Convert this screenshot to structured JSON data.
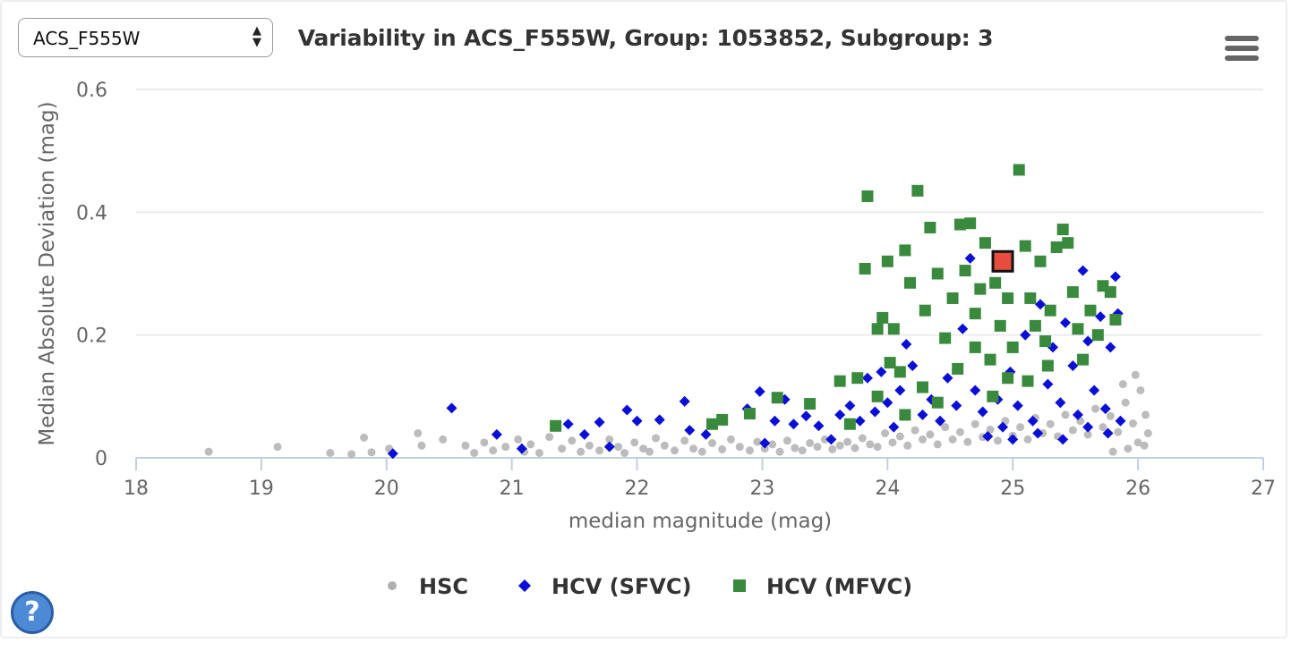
{
  "selector": {
    "value": "ACS_F555W"
  },
  "help_icon": {
    "glyph": "?"
  },
  "chart_data": {
    "type": "scatter",
    "title": "Variability in ACS_F555W, Group: 1053852, Subgroup: 3",
    "xlabel": "median magnitude (mag)",
    "ylabel": "Median Absolute Deviation (mag)",
    "xlim": [
      18,
      27
    ],
    "ylim": [
      0,
      0.6
    ],
    "xticks": [
      "18",
      "19",
      "20",
      "21",
      "22",
      "23",
      "24",
      "25",
      "26",
      "27"
    ],
    "yticks": [
      "0",
      "0.2",
      "0.4",
      "0.6"
    ],
    "grid": "horizontal",
    "legend": "bottom-center",
    "highlight": {
      "x": 24.92,
      "y": 0.32,
      "color": "#e74c3c"
    },
    "series": [
      {
        "name": "HSC",
        "marker": "circle",
        "color": "#b0b0b0",
        "points": [
          [
            18.58,
            0.01
          ],
          [
            19.13,
            0.018
          ],
          [
            19.55,
            0.008
          ],
          [
            19.72,
            0.006
          ],
          [
            19.82,
            0.033
          ],
          [
            19.88,
            0.009
          ],
          [
            20.02,
            0.015
          ],
          [
            20.28,
            0.02
          ],
          [
            20.25,
            0.04
          ],
          [
            20.45,
            0.03
          ],
          [
            20.63,
            0.02
          ],
          [
            20.7,
            0.008
          ],
          [
            20.78,
            0.025
          ],
          [
            20.85,
            0.012
          ],
          [
            20.95,
            0.018
          ],
          [
            21.05,
            0.03
          ],
          [
            21.1,
            0.01
          ],
          [
            21.15,
            0.022
          ],
          [
            21.22,
            0.008
          ],
          [
            21.3,
            0.034
          ],
          [
            21.4,
            0.015
          ],
          [
            21.48,
            0.028
          ],
          [
            21.55,
            0.01
          ],
          [
            21.62,
            0.02
          ],
          [
            21.7,
            0.012
          ],
          [
            21.78,
            0.03
          ],
          [
            21.85,
            0.018
          ],
          [
            21.9,
            0.008
          ],
          [
            21.98,
            0.025
          ],
          [
            22.05,
            0.015
          ],
          [
            22.1,
            0.01
          ],
          [
            22.15,
            0.032
          ],
          [
            22.22,
            0.02
          ],
          [
            22.3,
            0.012
          ],
          [
            22.38,
            0.028
          ],
          [
            22.45,
            0.015
          ],
          [
            22.52,
            0.01
          ],
          [
            22.6,
            0.024
          ],
          [
            22.68,
            0.014
          ],
          [
            22.75,
            0.03
          ],
          [
            22.82,
            0.018
          ],
          [
            22.9,
            0.012
          ],
          [
            22.96,
            0.026
          ],
          [
            23.02,
            0.015
          ],
          [
            23.08,
            0.022
          ],
          [
            23.14,
            0.01
          ],
          [
            23.2,
            0.028
          ],
          [
            23.26,
            0.016
          ],
          [
            23.32,
            0.012
          ],
          [
            23.38,
            0.024
          ],
          [
            23.44,
            0.018
          ],
          [
            23.5,
            0.03
          ],
          [
            23.56,
            0.014
          ],
          [
            23.62,
            0.02
          ],
          [
            23.68,
            0.026
          ],
          [
            23.74,
            0.016
          ],
          [
            23.8,
            0.032
          ],
          [
            23.86,
            0.022
          ],
          [
            23.92,
            0.018
          ],
          [
            23.98,
            0.04
          ],
          [
            24.04,
            0.025
          ],
          [
            24.1,
            0.035
          ],
          [
            24.16,
            0.02
          ],
          [
            24.22,
            0.045
          ],
          [
            24.28,
            0.03
          ],
          [
            24.34,
            0.038
          ],
          [
            24.4,
            0.022
          ],
          [
            24.46,
            0.05
          ],
          [
            24.52,
            0.03
          ],
          [
            24.58,
            0.042
          ],
          [
            24.64,
            0.026
          ],
          [
            24.7,
            0.055
          ],
          [
            24.76,
            0.034
          ],
          [
            24.82,
            0.046
          ],
          [
            24.88,
            0.028
          ],
          [
            24.94,
            0.06
          ],
          [
            25.0,
            0.036
          ],
          [
            25.06,
            0.05
          ],
          [
            25.12,
            0.03
          ],
          [
            25.18,
            0.065
          ],
          [
            25.24,
            0.04
          ],
          [
            25.3,
            0.055
          ],
          [
            25.36,
            0.035
          ],
          [
            25.42,
            0.07
          ],
          [
            25.48,
            0.045
          ],
          [
            25.54,
            0.06
          ],
          [
            25.6,
            0.038
          ],
          [
            25.66,
            0.08
          ],
          [
            25.72,
            0.05
          ],
          [
            25.78,
            0.068
          ],
          [
            25.84,
            0.042
          ],
          [
            25.9,
            0.09
          ],
          [
            25.96,
            0.056
          ],
          [
            26.02,
            0.11
          ],
          [
            26.06,
            0.07
          ],
          [
            26.08,
            0.04
          ],
          [
            25.98,
            0.135
          ],
          [
            25.88,
            0.12
          ],
          [
            26.0,
            0.025
          ],
          [
            25.92,
            0.015
          ],
          [
            26.05,
            0.02
          ],
          [
            25.8,
            0.01
          ]
        ]
      },
      {
        "name": "HCV (SFVC)",
        "marker": "diamond",
        "color": "#0a0fd8",
        "points": [
          [
            20.05,
            0.007
          ],
          [
            20.52,
            0.081
          ],
          [
            20.88,
            0.038
          ],
          [
            21.08,
            0.015
          ],
          [
            21.45,
            0.055
          ],
          [
            21.58,
            0.038
          ],
          [
            21.7,
            0.058
          ],
          [
            21.78,
            0.018
          ],
          [
            21.92,
            0.078
          ],
          [
            22.0,
            0.06
          ],
          [
            22.18,
            0.062
          ],
          [
            22.38,
            0.092
          ],
          [
            22.42,
            0.045
          ],
          [
            22.55,
            0.038
          ],
          [
            22.88,
            0.08
          ],
          [
            22.98,
            0.108
          ],
          [
            23.02,
            0.024
          ],
          [
            23.1,
            0.06
          ],
          [
            23.18,
            0.095
          ],
          [
            23.25,
            0.055
          ],
          [
            23.35,
            0.068
          ],
          [
            23.45,
            0.052
          ],
          [
            23.55,
            0.03
          ],
          [
            23.62,
            0.07
          ],
          [
            23.7,
            0.085
          ],
          [
            23.78,
            0.06
          ],
          [
            23.84,
            0.13
          ],
          [
            23.9,
            0.075
          ],
          [
            23.95,
            0.14
          ],
          [
            24.0,
            0.09
          ],
          [
            24.05,
            0.05
          ],
          [
            24.1,
            0.11
          ],
          [
            24.15,
            0.185
          ],
          [
            24.2,
            0.15
          ],
          [
            24.28,
            0.07
          ],
          [
            24.35,
            0.095
          ],
          [
            24.42,
            0.06
          ],
          [
            24.48,
            0.13
          ],
          [
            24.55,
            0.085
          ],
          [
            24.6,
            0.21
          ],
          [
            24.66,
            0.325
          ],
          [
            24.7,
            0.11
          ],
          [
            24.76,
            0.075
          ],
          [
            24.82,
            0.16
          ],
          [
            24.88,
            0.095
          ],
          [
            24.92,
            0.05
          ],
          [
            24.98,
            0.14
          ],
          [
            25.04,
            0.085
          ],
          [
            25.1,
            0.2
          ],
          [
            25.16,
            0.06
          ],
          [
            25.22,
            0.25
          ],
          [
            25.28,
            0.12
          ],
          [
            25.32,
            0.18
          ],
          [
            25.38,
            0.09
          ],
          [
            25.42,
            0.22
          ],
          [
            25.48,
            0.15
          ],
          [
            25.52,
            0.07
          ],
          [
            25.56,
            0.305
          ],
          [
            25.6,
            0.19
          ],
          [
            25.65,
            0.11
          ],
          [
            25.7,
            0.23
          ],
          [
            25.74,
            0.08
          ],
          [
            25.78,
            0.18
          ],
          [
            25.82,
            0.295
          ],
          [
            25.84,
            0.235
          ],
          [
            25.86,
            0.06
          ],
          [
            25.76,
            0.04
          ],
          [
            25.6,
            0.05
          ],
          [
            25.4,
            0.03
          ],
          [
            25.2,
            0.04
          ],
          [
            25.0,
            0.03
          ],
          [
            24.8,
            0.035
          ]
        ]
      },
      {
        "name": "HCV (MFVC)",
        "marker": "square",
        "color": "#3a8a3e",
        "points": [
          [
            21.35,
            0.052
          ],
          [
            22.6,
            0.055
          ],
          [
            22.68,
            0.062
          ],
          [
            22.9,
            0.072
          ],
          [
            23.12,
            0.098
          ],
          [
            23.38,
            0.088
          ],
          [
            23.62,
            0.125
          ],
          [
            23.7,
            0.055
          ],
          [
            23.76,
            0.13
          ],
          [
            23.82,
            0.308
          ],
          [
            23.84,
            0.426
          ],
          [
            23.92,
            0.1
          ],
          [
            23.96,
            0.228
          ],
          [
            24.0,
            0.32
          ],
          [
            24.05,
            0.21
          ],
          [
            24.1,
            0.14
          ],
          [
            24.14,
            0.338
          ],
          [
            24.18,
            0.285
          ],
          [
            24.24,
            0.435
          ],
          [
            24.3,
            0.24
          ],
          [
            24.34,
            0.375
          ],
          [
            24.4,
            0.3
          ],
          [
            24.46,
            0.195
          ],
          [
            24.52,
            0.26
          ],
          [
            24.58,
            0.38
          ],
          [
            24.62,
            0.305
          ],
          [
            24.66,
            0.382
          ],
          [
            24.7,
            0.235
          ],
          [
            24.74,
            0.275
          ],
          [
            24.78,
            0.35
          ],
          [
            24.82,
            0.16
          ],
          [
            24.86,
            0.285
          ],
          [
            24.9,
            0.215
          ],
          [
            24.96,
            0.13
          ],
          [
            25.0,
            0.18
          ],
          [
            25.05,
            0.469
          ],
          [
            25.1,
            0.345
          ],
          [
            25.14,
            0.26
          ],
          [
            25.18,
            0.215
          ],
          [
            25.22,
            0.32
          ],
          [
            25.26,
            0.19
          ],
          [
            25.3,
            0.24
          ],
          [
            25.35,
            0.343
          ],
          [
            25.4,
            0.372
          ],
          [
            25.44,
            0.35
          ],
          [
            25.48,
            0.27
          ],
          [
            25.52,
            0.21
          ],
          [
            25.56,
            0.16
          ],
          [
            25.62,
            0.24
          ],
          [
            25.68,
            0.2
          ],
          [
            25.72,
            0.28
          ],
          [
            25.78,
            0.27
          ],
          [
            25.82,
            0.225
          ],
          [
            25.28,
            0.15
          ],
          [
            25.12,
            0.125
          ],
          [
            24.96,
            0.26
          ],
          [
            24.84,
            0.1
          ],
          [
            24.7,
            0.18
          ],
          [
            24.56,
            0.145
          ],
          [
            24.4,
            0.09
          ],
          [
            24.28,
            0.115
          ],
          [
            24.14,
            0.07
          ],
          [
            24.02,
            0.155
          ],
          [
            23.92,
            0.21
          ]
        ]
      }
    ]
  }
}
